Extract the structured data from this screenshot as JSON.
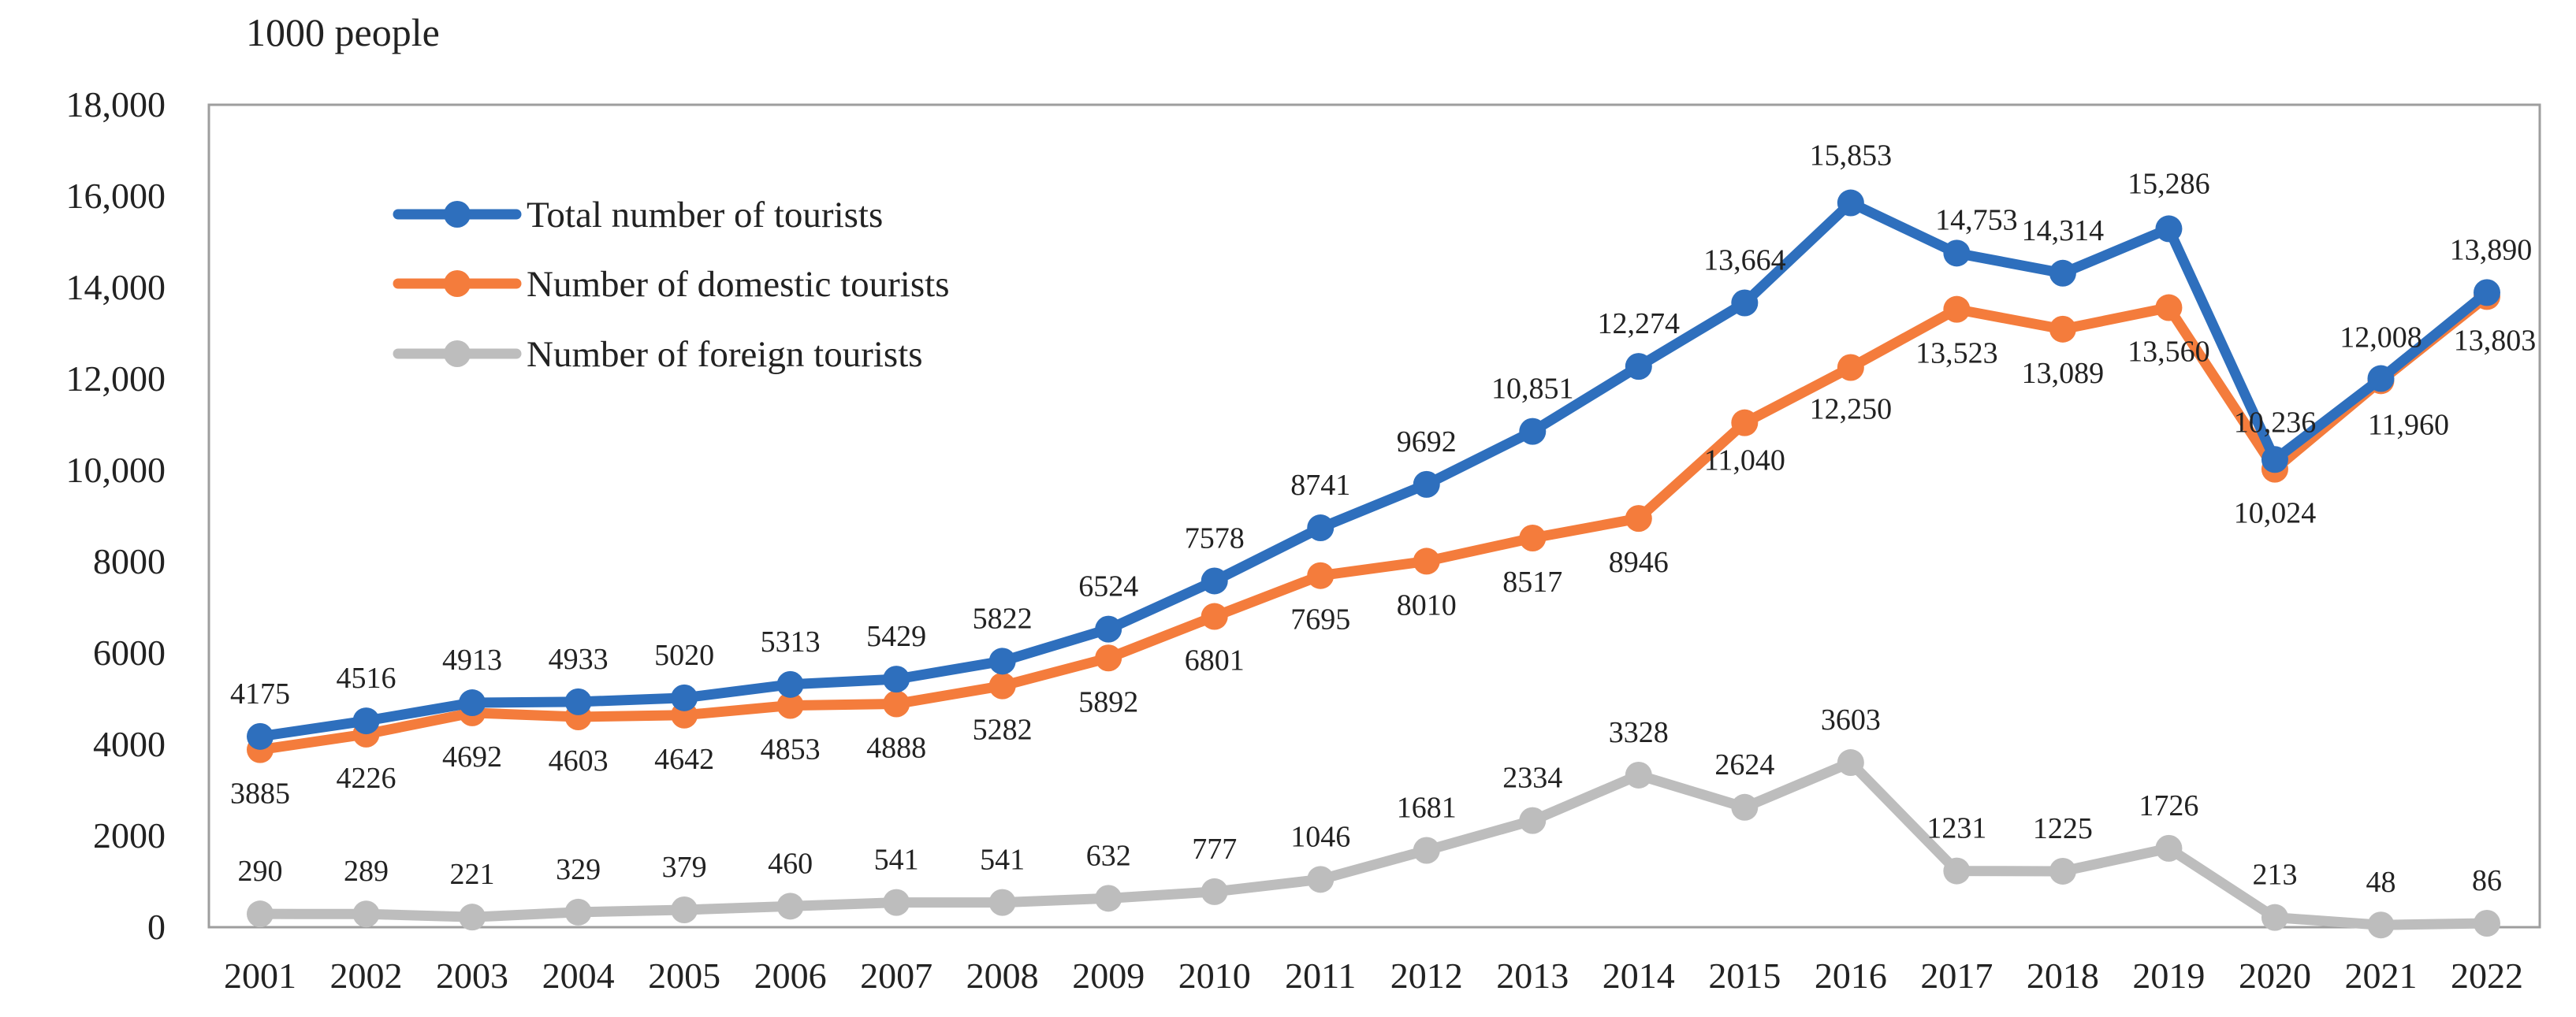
{
  "chart_data": {
    "type": "line",
    "title": "",
    "unit_label": "1000 people",
    "xlabel": "",
    "ylabel": "1000 people",
    "categories": [
      "2001",
      "2002",
      "2003",
      "2004",
      "2005",
      "2006",
      "2007",
      "2008",
      "2009",
      "2010",
      "2011",
      "2012",
      "2013",
      "2014",
      "2015",
      "2016",
      "2017",
      "2018",
      "2019",
      "2020",
      "2021",
      "2022"
    ],
    "ylim": [
      0,
      18000
    ],
    "yticks": [
      0,
      2000,
      4000,
      6000,
      8000,
      10000,
      12000,
      14000,
      16000,
      18000
    ],
    "ytick_labels": [
      "0",
      "2000",
      "4000",
      "6000",
      "8000",
      "10,000",
      "12,000",
      "14,000",
      "16,000",
      "18,000"
    ],
    "grid": false,
    "legend_position": "top-left",
    "series": [
      {
        "name": "Total number of tourists",
        "color": "#2e6fbd",
        "values": [
          4175,
          4516,
          4913,
          4933,
          5020,
          5313,
          5429,
          5822,
          6524,
          7578,
          8741,
          9692,
          10851,
          12274,
          13664,
          15853,
          14753,
          14314,
          15286,
          10236,
          12008,
          13890
        ],
        "labels": [
          "4175",
          "4516",
          "4913",
          "4933",
          "5020",
          "5313",
          "5429",
          "5822",
          "6524",
          "7578",
          "8741",
          "9692",
          "10,851",
          "12,274",
          "13,664",
          "15,853",
          "14,753",
          "14,314",
          "15,286",
          "10,236",
          "12,008",
          "13,890"
        ]
      },
      {
        "name": "Number of domestic tourists",
        "color": "#f47c3c",
        "values": [
          3885,
          4226,
          4692,
          4603,
          4642,
          4853,
          4888,
          5282,
          5892,
          6801,
          7695,
          8010,
          8517,
          8946,
          11040,
          12250,
          13523,
          13089,
          13560,
          10024,
          11960,
          13803
        ],
        "labels": [
          "3885",
          "4226",
          "4692",
          "4603",
          "4642",
          "4853",
          "4888",
          "5282",
          "5892",
          "6801",
          "7695",
          "8010",
          "8517",
          "8946",
          "11,040",
          "12,250",
          "13,523",
          "13,089",
          "13,560",
          "10,024",
          "11,960",
          "13,803"
        ]
      },
      {
        "name": "Number of foreign tourists",
        "color": "#bdbdbd",
        "values": [
          290,
          289,
          221,
          329,
          379,
          460,
          541,
          541,
          632,
          777,
          1046,
          1681,
          2334,
          3328,
          2624,
          3603,
          1231,
          1225,
          1726,
          213,
          48,
          86
        ],
        "labels": [
          "290",
          "289",
          "221",
          "329",
          "379",
          "460",
          "541",
          "541",
          "632",
          "777",
          "1046",
          "1681",
          "2334",
          "3328",
          "2624",
          "3603",
          "1231",
          "1225",
          "1726",
          "213",
          "48",
          "86"
        ]
      }
    ]
  }
}
